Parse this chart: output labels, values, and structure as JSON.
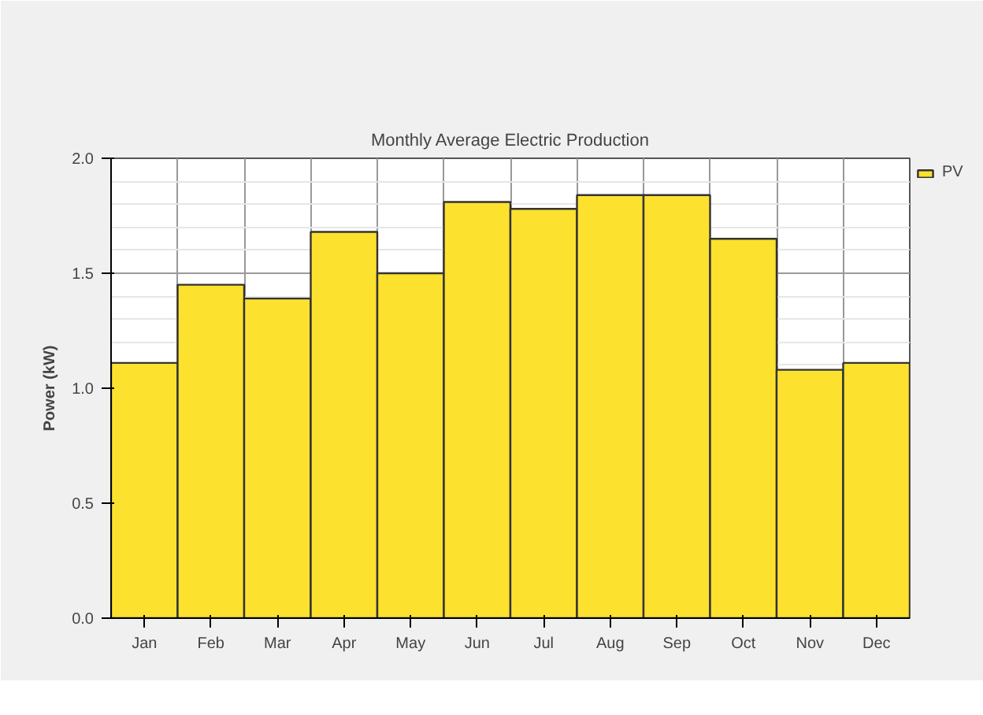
{
  "chart_data": {
    "type": "bar",
    "title": "Monthly Average Electric Production",
    "ylabel": "Power (kW)",
    "categories": [
      "Jan",
      "Feb",
      "Mar",
      "Apr",
      "May",
      "Jun",
      "Jul",
      "Aug",
      "Sep",
      "Oct",
      "Nov",
      "Dec"
    ],
    "series": [
      {
        "name": "PV",
        "color": "#fde12f",
        "values": [
          1.11,
          1.45,
          1.39,
          1.68,
          1.5,
          1.81,
          1.78,
          1.84,
          1.84,
          1.65,
          1.08,
          1.11
        ]
      }
    ],
    "ylim": [
      0,
      2.0
    ],
    "yticks": [
      {
        "value": 0,
        "label": "0.0"
      },
      0.5,
      {
        "value": 1,
        "label": "1.0"
      },
      1.5,
      {
        "value": 2,
        "label": "2.0"
      }
    ],
    "grid": true,
    "legend": "top right"
  }
}
